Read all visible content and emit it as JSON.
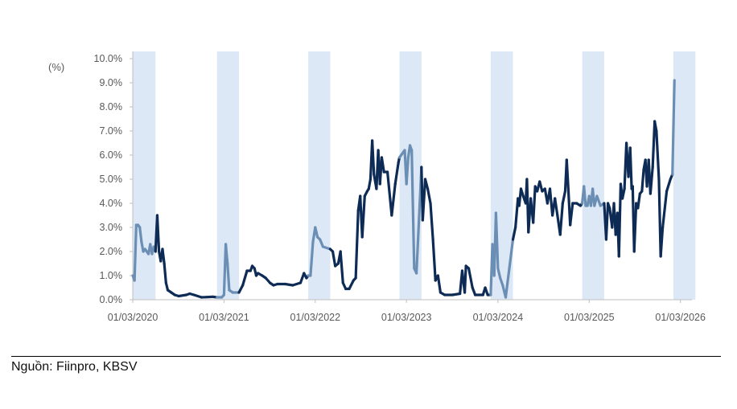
{
  "source": "Nguồn: Fiinpro, KBSV",
  "colors": {
    "line_dark": "#0d2b55",
    "line_light": "#6b8eb5",
    "band": "#dce8f5",
    "axis": "#bfbfbf",
    "text": "#595959"
  },
  "chart_data": {
    "type": "line",
    "unit_label": "(%)",
    "xlabel": "",
    "ylabel": "",
    "x_ticks": [
      "01/03/2020",
      "01/03/2021",
      "01/03/2022",
      "01/03/2023",
      "01/03/2024",
      "01/03/2025",
      "01/03/2026"
    ],
    "y_ticks": [
      "0.0%",
      "1.0%",
      "2.0%",
      "3.0%",
      "4.0%",
      "5.0%",
      "6.0%",
      "7.0%",
      "8.0%",
      "9.0%",
      "10.0%"
    ],
    "ylim": [
      0,
      10
    ],
    "x_range": [
      "2020-03-01",
      "2026-03-31"
    ],
    "grid": false,
    "shaded_periods": [
      [
        "2020-03-01",
        "2020-05-31"
      ],
      [
        "2021-02-01",
        "2021-04-30"
      ],
      [
        "2022-02-01",
        "2022-04-30"
      ],
      [
        "2023-02-01",
        "2023-04-30"
      ],
      [
        "2024-02-01",
        "2024-04-30"
      ],
      [
        "2025-02-01",
        "2025-04-30"
      ],
      [
        "2026-02-01",
        "2026-04-30"
      ]
    ],
    "series": [
      {
        "points": [
          [
            "2020-03-01",
            1.0
          ],
          [
            "2020-03-08",
            0.8
          ],
          [
            "2020-03-15",
            3.1
          ],
          [
            "2020-03-22",
            3.1
          ],
          [
            "2020-03-29",
            3.0
          ],
          [
            "2020-04-05",
            2.4
          ],
          [
            "2020-04-12",
            2.0
          ],
          [
            "2020-04-19",
            2.1
          ],
          [
            "2020-04-26",
            2.0
          ],
          [
            "2020-05-03",
            1.9
          ],
          [
            "2020-05-10",
            2.3
          ],
          [
            "2020-05-17",
            1.9
          ],
          [
            "2020-05-24",
            2.2
          ],
          [
            "2020-05-31",
            2.0
          ],
          [
            "2020-06-07",
            3.5
          ],
          [
            "2020-06-14",
            2.0
          ],
          [
            "2020-06-21",
            1.6
          ],
          [
            "2020-06-28",
            2.1
          ],
          [
            "2020-07-05",
            1.5
          ],
          [
            "2020-07-12",
            0.7
          ],
          [
            "2020-07-19",
            0.4
          ],
          [
            "2020-08-02",
            0.3
          ],
          [
            "2020-08-16",
            0.2
          ],
          [
            "2020-09-01",
            0.15
          ],
          [
            "2020-10-01",
            0.2
          ],
          [
            "2020-10-15",
            0.25
          ],
          [
            "2020-11-01",
            0.2
          ],
          [
            "2020-12-01",
            0.1
          ],
          [
            "2021-01-15",
            0.12
          ],
          [
            "2021-02-01",
            0.1
          ],
          [
            "2021-02-20",
            0.1
          ],
          [
            "2021-03-01",
            0.2
          ],
          [
            "2021-03-08",
            2.3
          ],
          [
            "2021-03-15",
            1.5
          ],
          [
            "2021-03-22",
            0.4
          ],
          [
            "2021-04-05",
            0.3
          ],
          [
            "2021-04-30",
            0.3
          ],
          [
            "2021-05-15",
            0.6
          ],
          [
            "2021-06-01",
            1.2
          ],
          [
            "2021-06-15",
            1.2
          ],
          [
            "2021-06-22",
            1.4
          ],
          [
            "2021-07-01",
            1.3
          ],
          [
            "2021-07-08",
            1.0
          ],
          [
            "2021-07-15",
            1.1
          ],
          [
            "2021-08-01",
            1.0
          ],
          [
            "2021-08-15",
            0.9
          ],
          [
            "2021-09-01",
            0.7
          ],
          [
            "2021-09-15",
            0.6
          ],
          [
            "2021-10-01",
            0.65
          ],
          [
            "2021-11-01",
            0.65
          ],
          [
            "2021-12-01",
            0.6
          ],
          [
            "2022-01-01",
            0.7
          ],
          [
            "2022-01-15",
            1.1
          ],
          [
            "2022-01-25",
            0.9
          ],
          [
            "2022-02-01",
            1.0
          ],
          [
            "2022-02-10",
            1.0
          ],
          [
            "2022-02-20",
            2.4
          ],
          [
            "2022-03-01",
            3.0
          ],
          [
            "2022-03-10",
            2.6
          ],
          [
            "2022-03-20",
            2.5
          ],
          [
            "2022-04-01",
            2.2
          ],
          [
            "2022-04-30",
            2.1
          ],
          [
            "2022-05-10",
            2.0
          ],
          [
            "2022-05-20",
            1.4
          ],
          [
            "2022-06-01",
            1.5
          ],
          [
            "2022-06-10",
            2.0
          ],
          [
            "2022-06-20",
            0.7
          ],
          [
            "2022-07-01",
            0.45
          ],
          [
            "2022-07-15",
            0.45
          ],
          [
            "2022-08-01",
            0.8
          ],
          [
            "2022-08-10",
            0.9
          ],
          [
            "2022-08-20",
            3.7
          ],
          [
            "2022-08-28",
            4.3
          ],
          [
            "2022-09-05",
            2.6
          ],
          [
            "2022-09-15",
            4.3
          ],
          [
            "2022-09-25",
            4.5
          ],
          [
            "2022-10-01",
            4.6
          ],
          [
            "2022-10-08",
            5.0
          ],
          [
            "2022-10-15",
            6.6
          ],
          [
            "2022-10-22",
            5.2
          ],
          [
            "2022-11-01",
            4.6
          ],
          [
            "2022-11-08",
            6.2
          ],
          [
            "2022-11-15",
            4.8
          ],
          [
            "2022-11-22",
            5.9
          ],
          [
            "2022-12-01",
            5.3
          ],
          [
            "2022-12-15",
            5.3
          ],
          [
            "2023-01-01",
            3.5
          ],
          [
            "2023-01-15",
            4.8
          ],
          [
            "2023-01-28",
            5.7
          ],
          [
            "2023-02-01",
            5.9
          ],
          [
            "2023-02-15",
            6.1
          ],
          [
            "2023-02-22",
            6.2
          ],
          [
            "2023-03-01",
            4.8
          ],
          [
            "2023-03-08",
            5.9
          ],
          [
            "2023-03-15",
            6.4
          ],
          [
            "2023-03-22",
            6.2
          ],
          [
            "2023-04-01",
            1.3
          ],
          [
            "2023-04-10",
            1.1
          ],
          [
            "2023-04-30",
            5.5
          ],
          [
            "2023-05-05",
            3.3
          ],
          [
            "2023-05-15",
            5.0
          ],
          [
            "2023-05-25",
            4.6
          ],
          [
            "2023-06-05",
            4.0
          ],
          [
            "2023-06-15",
            2.5
          ],
          [
            "2023-06-25",
            0.8
          ],
          [
            "2023-07-05",
            1.0
          ],
          [
            "2023-07-15",
            0.3
          ],
          [
            "2023-08-01",
            0.2
          ],
          [
            "2023-09-01",
            0.2
          ],
          [
            "2023-10-01",
            0.25
          ],
          [
            "2023-10-10",
            1.2
          ],
          [
            "2023-10-20",
            0.3
          ],
          [
            "2023-10-25",
            1.4
          ],
          [
            "2023-11-05",
            1.3
          ],
          [
            "2023-11-20",
            0.5
          ],
          [
            "2023-12-01",
            0.2
          ],
          [
            "2024-01-01",
            0.2
          ],
          [
            "2024-01-10",
            0.5
          ],
          [
            "2024-01-20",
            0.2
          ],
          [
            "2024-02-01",
            0.2
          ],
          [
            "2024-02-08",
            2.3
          ],
          [
            "2024-02-15",
            1.0
          ],
          [
            "2024-02-22",
            3.6
          ],
          [
            "2024-03-01",
            1.3
          ],
          [
            "2024-03-10",
            0.9
          ],
          [
            "2024-03-20",
            0.6
          ],
          [
            "2024-04-01",
            0.1
          ],
          [
            "2024-04-30",
            2.5
          ],
          [
            "2024-05-10",
            3.0
          ],
          [
            "2024-05-20",
            4.2
          ],
          [
            "2024-05-25",
            3.9
          ],
          [
            "2024-06-01",
            4.6
          ],
          [
            "2024-06-10",
            4.3
          ],
          [
            "2024-06-20",
            4.0
          ],
          [
            "2024-06-25",
            5.0
          ],
          [
            "2024-07-01",
            2.8
          ],
          [
            "2024-07-10",
            4.2
          ],
          [
            "2024-07-20",
            3.2
          ],
          [
            "2024-07-28",
            4.7
          ],
          [
            "2024-08-05",
            4.5
          ],
          [
            "2024-08-15",
            4.9
          ],
          [
            "2024-08-25",
            4.5
          ],
          [
            "2024-09-05",
            4.6
          ],
          [
            "2024-09-15",
            4.0
          ],
          [
            "2024-09-25",
            4.6
          ],
          [
            "2024-10-05",
            3.5
          ],
          [
            "2024-10-15",
            4.2
          ],
          [
            "2024-10-25",
            3.5
          ],
          [
            "2024-11-05",
            2.7
          ],
          [
            "2024-11-15",
            4.0
          ],
          [
            "2024-11-25",
            4.5
          ],
          [
            "2024-12-01",
            5.8
          ],
          [
            "2024-12-08",
            4.5
          ],
          [
            "2024-12-15",
            3.1
          ],
          [
            "2024-12-25",
            4.0
          ],
          [
            "2025-01-10",
            4.0
          ],
          [
            "2025-01-25",
            3.9
          ],
          [
            "2025-02-01",
            4.0
          ],
          [
            "2025-02-08",
            4.7
          ],
          [
            "2025-02-15",
            3.9
          ],
          [
            "2025-02-22",
            3.9
          ],
          [
            "2025-03-01",
            4.3
          ],
          [
            "2025-03-08",
            3.9
          ],
          [
            "2025-03-15",
            4.6
          ],
          [
            "2025-03-22",
            3.9
          ],
          [
            "2025-04-01",
            4.3
          ],
          [
            "2025-04-15",
            3.9
          ],
          [
            "2025-04-30",
            4.0
          ],
          [
            "2025-05-08",
            2.5
          ],
          [
            "2025-05-15",
            4.0
          ],
          [
            "2025-05-22",
            3.8
          ],
          [
            "2025-06-01",
            3.0
          ],
          [
            "2025-06-08",
            4.0
          ],
          [
            "2025-06-15",
            2.7
          ],
          [
            "2025-06-22",
            3.6
          ],
          [
            "2025-06-28",
            1.8
          ],
          [
            "2025-07-05",
            4.8
          ],
          [
            "2025-07-12",
            4.2
          ],
          [
            "2025-07-20",
            4.6
          ],
          [
            "2025-07-28",
            6.5
          ],
          [
            "2025-08-05",
            5.1
          ],
          [
            "2025-08-12",
            6.3
          ],
          [
            "2025-08-18",
            4.6
          ],
          [
            "2025-08-22",
            4.7
          ],
          [
            "2025-08-28",
            2.0
          ],
          [
            "2025-09-05",
            4.0
          ],
          [
            "2025-09-12",
            3.8
          ],
          [
            "2025-09-20",
            4.4
          ],
          [
            "2025-09-28",
            4.5
          ],
          [
            "2025-10-05",
            5.4
          ],
          [
            "2025-10-12",
            5.8
          ],
          [
            "2025-10-18",
            4.7
          ],
          [
            "2025-10-25",
            5.8
          ],
          [
            "2025-11-01",
            4.4
          ],
          [
            "2025-11-10",
            5.5
          ],
          [
            "2025-11-18",
            7.4
          ],
          [
            "2025-11-25",
            7.0
          ],
          [
            "2025-12-05",
            5.0
          ],
          [
            "2025-12-12",
            1.8
          ],
          [
            "2025-12-20",
            3.0
          ],
          [
            "2026-01-05",
            4.5
          ],
          [
            "2026-01-20",
            5.0
          ],
          [
            "2026-01-28",
            5.2
          ],
          [
            "2026-02-05",
            9.1
          ]
        ]
      }
    ]
  }
}
